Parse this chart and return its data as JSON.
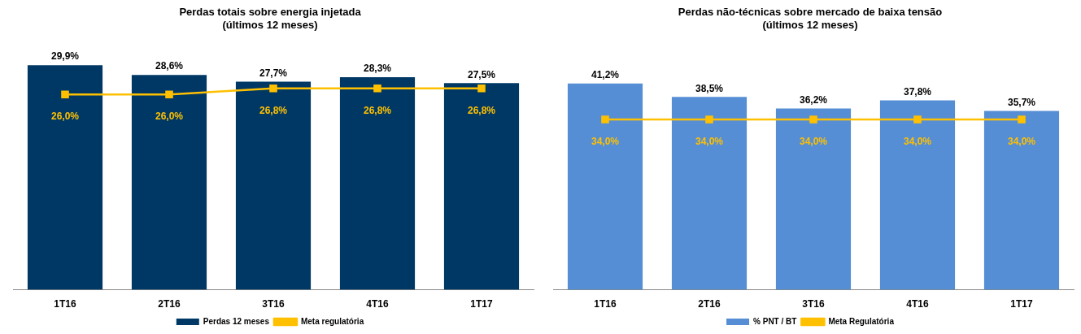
{
  "chart_data": [
    {
      "type": "bar",
      "title": "Perdas totais sobre energia injetada\n(últimos 12 meses)",
      "categories": [
        "1T16",
        "2T16",
        "3T16",
        "4T16",
        "1T17"
      ],
      "tick_labels": "x",
      "grid": false,
      "legend": "bottom",
      "series": [
        {
          "name": "Perdas 12 meses",
          "color": "#003865",
          "values": [
            29.9,
            28.6,
            27.7,
            28.3,
            27.5
          ],
          "value_labels": [
            "29,9%",
            "28,6%",
            "27,7%",
            "28,3%",
            "27,5%"
          ]
        },
        {
          "name": "Meta regulatória",
          "type": "line",
          "color": "#ffc000",
          "marker": "square",
          "values": [
            26.0,
            26.0,
            26.8,
            26.8,
            26.8
          ],
          "value_labels": [
            "26,0%",
            "26,0%",
            "26,8%",
            "26,8%",
            "26,8%"
          ]
        }
      ]
    },
    {
      "type": "bar",
      "title": "Perdas não-técnicas sobre mercado de baixa tensão\n(últimos 12 meses)",
      "categories": [
        "1T16",
        "2T16",
        "3T16",
        "4T16",
        "1T17"
      ],
      "tick_labels": "x",
      "grid": false,
      "legend": "bottom",
      "series": [
        {
          "name": "% PNT / BT",
          "color": "#558ed5",
          "values": [
            41.2,
            38.5,
            36.2,
            37.8,
            35.7
          ],
          "value_labels": [
            "41,2%",
            "38,5%",
            "36,2%",
            "37,8%",
            "35,7%"
          ]
        },
        {
          "name": "Meta Regulatória",
          "type": "line",
          "color": "#ffc000",
          "marker": "square",
          "values": [
            34.0,
            34.0,
            34.0,
            34.0,
            34.0
          ],
          "value_labels": [
            "34,0%",
            "34,0%",
            "34,0%",
            "34,0%",
            "34,0%"
          ]
        }
      ]
    }
  ]
}
